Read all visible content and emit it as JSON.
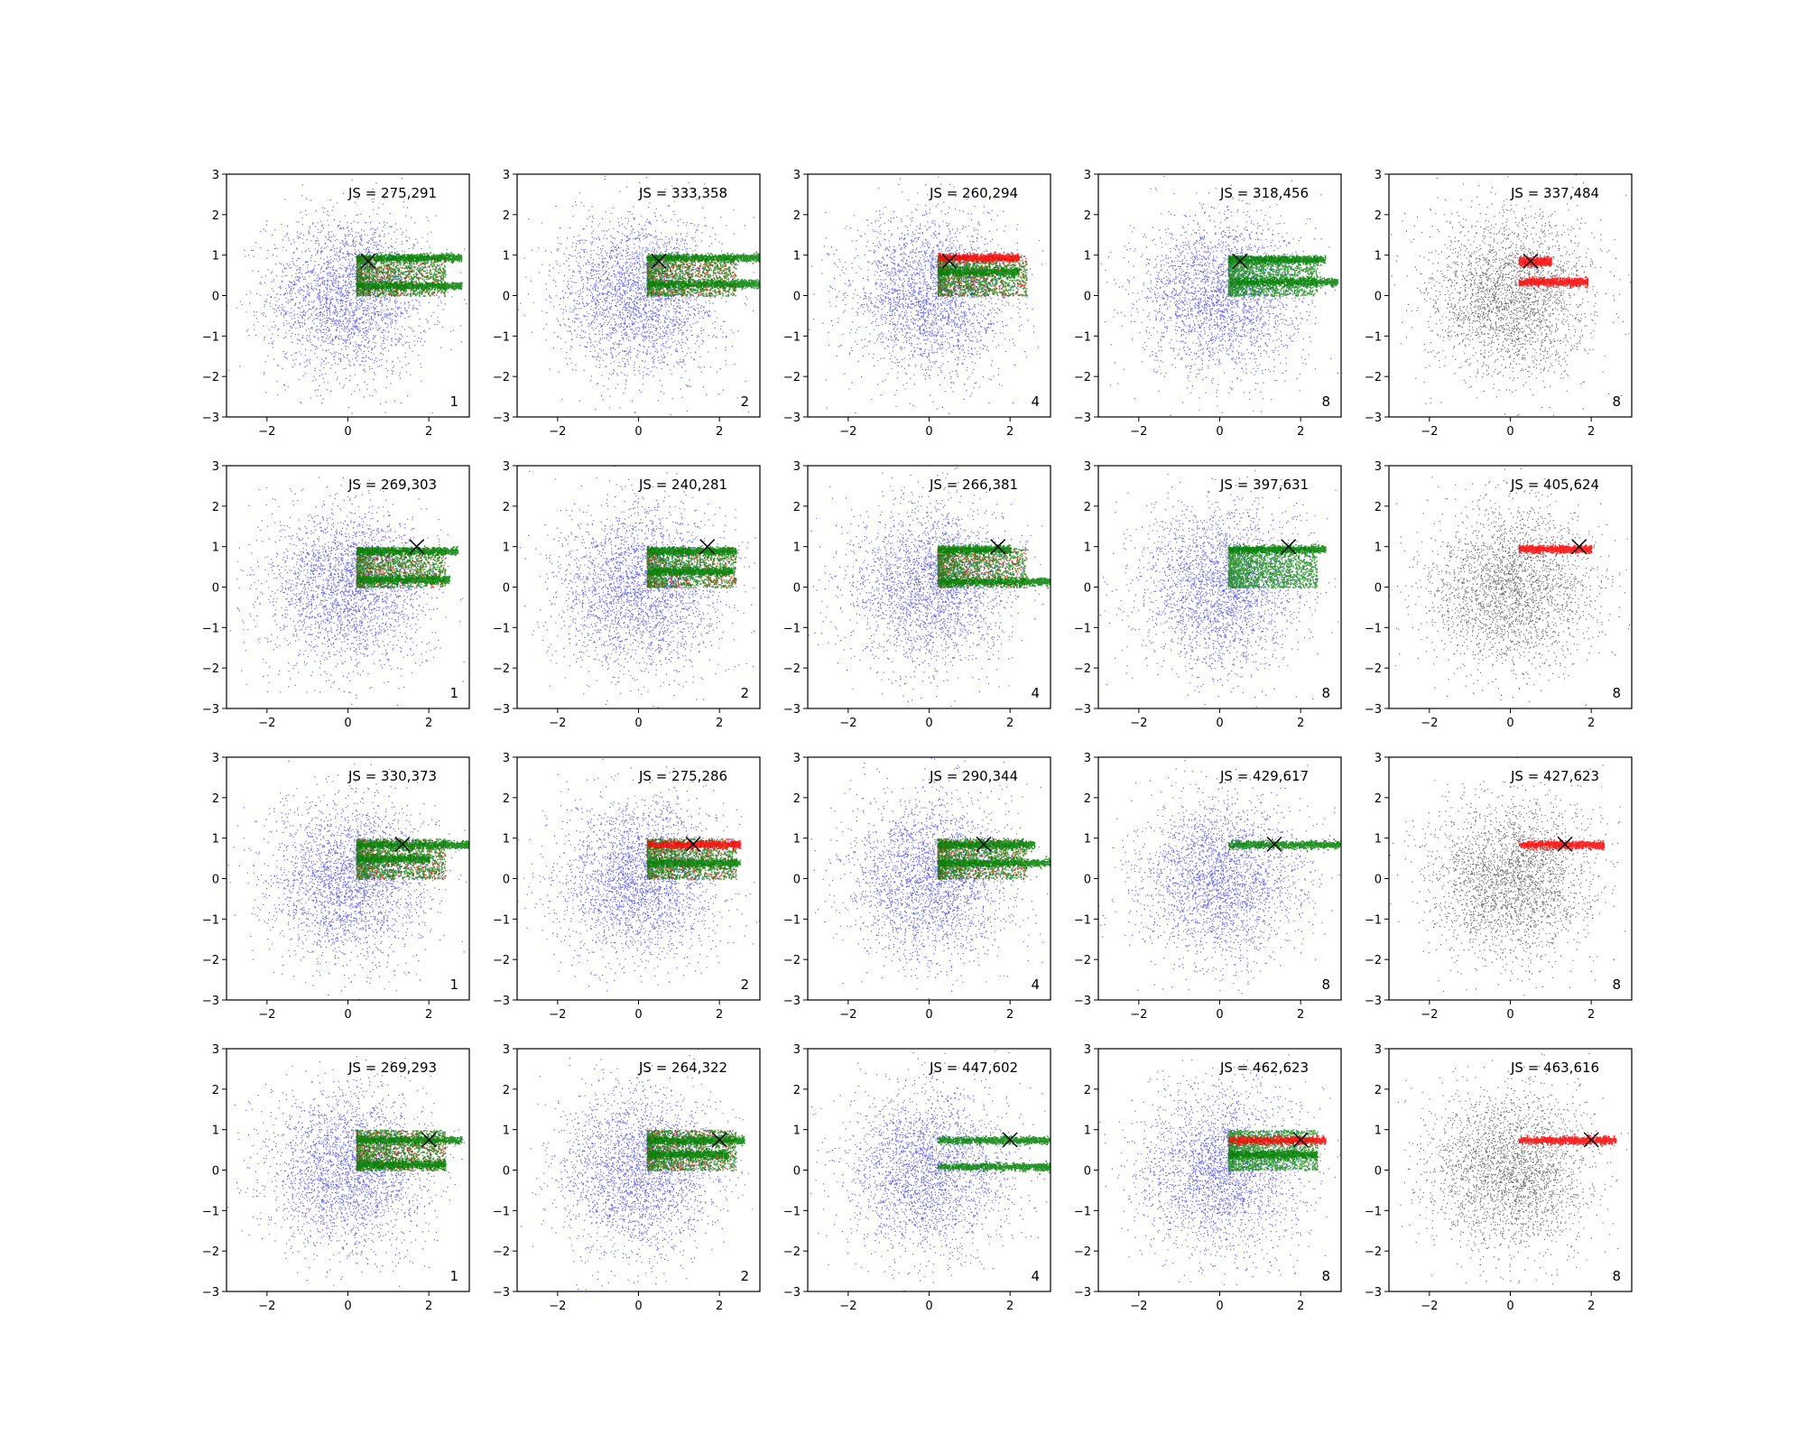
{
  "chart_data": {
    "type": "scatter",
    "grid": false,
    "xlim": [
      -3,
      3
    ],
    "ylim": [
      -3,
      3
    ],
    "xticks": [
      -2,
      0,
      2
    ],
    "yticks": [
      -3,
      -2,
      -1,
      0,
      1,
      2,
      3
    ],
    "tick_labels": {
      "x": [
        "−2",
        "0",
        "2"
      ],
      "y": [
        "−3",
        "−2",
        "−1",
        "0",
        "1",
        "2",
        "3"
      ]
    },
    "colors": {
      "background_points_blue": "#0000ff",
      "background_points_black": "#000000",
      "highlight_red": "#ff0000",
      "highlight_green": "#008000",
      "marker": "#000000"
    },
    "notes": {
      "background_distribution": "isotropic Gaussian cloud, mean (0,0), std ~1",
      "cluster_band": "points concentrated in y 0..1 starting near x 0.2"
    },
    "rows": [
      {
        "x_marker": [
          0.5,
          0.85
        ],
        "panels": [
          {
            "js": "JS = 275,291",
            "n": "1",
            "bg": "blue",
            "bands": [
              {
                "y": 0.95,
                "x_end": 2.8,
                "color": "green"
              },
              {
                "y": 0.25,
                "x_end": 2.8,
                "color": "green"
              }
            ],
            "red_cluster": true,
            "green_cluster": true
          },
          {
            "js": "JS = 333,358",
            "n": "2",
            "bg": "blue",
            "bands": [
              {
                "y": 0.95,
                "x_end": 3.0,
                "color": "green"
              },
              {
                "y": 0.3,
                "x_end": 3.0,
                "color": "green"
              }
            ],
            "red_cluster": true,
            "green_cluster": true
          },
          {
            "js": "JS = 260,294",
            "n": "4",
            "bg": "blue",
            "bands": [
              {
                "y": 0.95,
                "x_end": 2.2,
                "color": "red"
              },
              {
                "y": 0.6,
                "x_end": 2.2,
                "color": "green"
              }
            ],
            "red_cluster": true,
            "green_cluster": true
          },
          {
            "js": "JS = 318,456",
            "n": "8",
            "bg": "blue",
            "bands": [
              {
                "y": 0.9,
                "x_end": 2.6,
                "color": "green"
              },
              {
                "y": 0.35,
                "x_end": 2.9,
                "color": "green"
              }
            ],
            "red_cluster": false,
            "green_cluster": true
          },
          {
            "js": "JS = 337,484",
            "n": "8",
            "bg": "black",
            "bands": [
              {
                "y": 0.85,
                "x_end": 1.0,
                "color": "red"
              },
              {
                "y": 0.35,
                "x_end": 1.9,
                "color": "red"
              }
            ],
            "red_cluster": false,
            "green_cluster": false
          }
        ]
      },
      {
        "x_marker": [
          1.7,
          1.0
        ],
        "panels": [
          {
            "js": "JS = 269,303",
            "n": "1",
            "bg": "blue",
            "bands": [
              {
                "y": 0.9,
                "x_end": 2.7,
                "color": "green"
              },
              {
                "y": 0.2,
                "x_end": 2.5,
                "color": "green"
              }
            ],
            "red_cluster": true,
            "green_cluster": true
          },
          {
            "js": "JS = 240,281",
            "n": "2",
            "bg": "blue",
            "bands": [
              {
                "y": 0.9,
                "x_end": 2.4,
                "color": "green"
              },
              {
                "y": 0.4,
                "x_end": 2.3,
                "color": "green"
              }
            ],
            "red_cluster": true,
            "green_cluster": true
          },
          {
            "js": "JS = 266,381",
            "n": "4",
            "bg": "blue",
            "bands": [
              {
                "y": 0.95,
                "x_end": 2.0,
                "color": "green"
              },
              {
                "y": 0.15,
                "x_end": 3.0,
                "color": "green"
              }
            ],
            "red_cluster": true,
            "green_cluster": true
          },
          {
            "js": "JS = 397,631",
            "n": "8",
            "bg": "blue",
            "bands": [
              {
                "y": 0.95,
                "x_end": 2.6,
                "color": "green"
              }
            ],
            "red_cluster": false,
            "green_cluster": true
          },
          {
            "js": "JS = 405,624",
            "n": "8",
            "bg": "black",
            "bands": [
              {
                "y": 0.95,
                "x_end": 2.0,
                "color": "red"
              }
            ],
            "red_cluster": false,
            "green_cluster": false
          }
        ]
      },
      {
        "x_marker": [
          1.35,
          0.85
        ],
        "panels": [
          {
            "js": "JS = 330,373",
            "n": "1",
            "bg": "blue",
            "bands": [
              {
                "y": 0.85,
                "x_end": 3.0,
                "color": "green"
              },
              {
                "y": 0.5,
                "x_end": 2.0,
                "color": "green"
              }
            ],
            "red_cluster": true,
            "green_cluster": true
          },
          {
            "js": "JS = 275,286",
            "n": "2",
            "bg": "blue",
            "bands": [
              {
                "y": 0.85,
                "x_end": 2.5,
                "color": "red"
              },
              {
                "y": 0.4,
                "x_end": 2.5,
                "color": "green"
              }
            ],
            "red_cluster": true,
            "green_cluster": true
          },
          {
            "js": "JS = 290,344",
            "n": "4",
            "bg": "blue",
            "bands": [
              {
                "y": 0.85,
                "x_end": 2.6,
                "color": "green"
              },
              {
                "y": 0.4,
                "x_end": 3.0,
                "color": "green"
              }
            ],
            "red_cluster": true,
            "green_cluster": true
          },
          {
            "js": "JS = 429,617",
            "n": "8",
            "bg": "blue",
            "bands": [
              {
                "y": 0.85,
                "x_end": 3.0,
                "color": "green"
              }
            ],
            "red_cluster": false,
            "green_cluster": false
          },
          {
            "js": "JS = 427,623",
            "n": "8",
            "bg": "black",
            "bands": [
              {
                "y": 0.85,
                "x_end": 2.3,
                "color": "red"
              }
            ],
            "red_cluster": false,
            "green_cluster": false
          }
        ]
      },
      {
        "x_marker": [
          2.0,
          0.75
        ],
        "panels": [
          {
            "js": "JS = 269,293",
            "n": "1",
            "bg": "blue",
            "bands": [
              {
                "y": 0.75,
                "x_end": 2.8,
                "color": "green"
              },
              {
                "y": 0.15,
                "x_end": 2.4,
                "color": "green"
              }
            ],
            "red_cluster": true,
            "green_cluster": true
          },
          {
            "js": "JS = 264,322",
            "n": "2",
            "bg": "blue",
            "bands": [
              {
                "y": 0.75,
                "x_end": 2.6,
                "color": "green"
              },
              {
                "y": 0.4,
                "x_end": 2.2,
                "color": "green"
              }
            ],
            "red_cluster": true,
            "green_cluster": true
          },
          {
            "js": "JS = 447,602",
            "n": "4",
            "bg": "blue",
            "bands": [
              {
                "y": 0.75,
                "x_end": 3.0,
                "color": "green"
              },
              {
                "y": 0.1,
                "x_end": 3.0,
                "color": "green"
              }
            ],
            "red_cluster": false,
            "green_cluster": false
          },
          {
            "js": "JS = 462,623",
            "n": "8",
            "bg": "blue",
            "bands": [
              {
                "y": 0.75,
                "x_end": 2.6,
                "color": "red"
              },
              {
                "y": 0.4,
                "x_end": 2.4,
                "color": "green"
              }
            ],
            "red_cluster": false,
            "green_cluster": true
          },
          {
            "js": "JS = 463,616",
            "n": "8",
            "bg": "black",
            "bands": [
              {
                "y": 0.75,
                "x_end": 2.6,
                "color": "red"
              }
            ],
            "red_cluster": false,
            "green_cluster": false
          }
        ]
      }
    ]
  }
}
